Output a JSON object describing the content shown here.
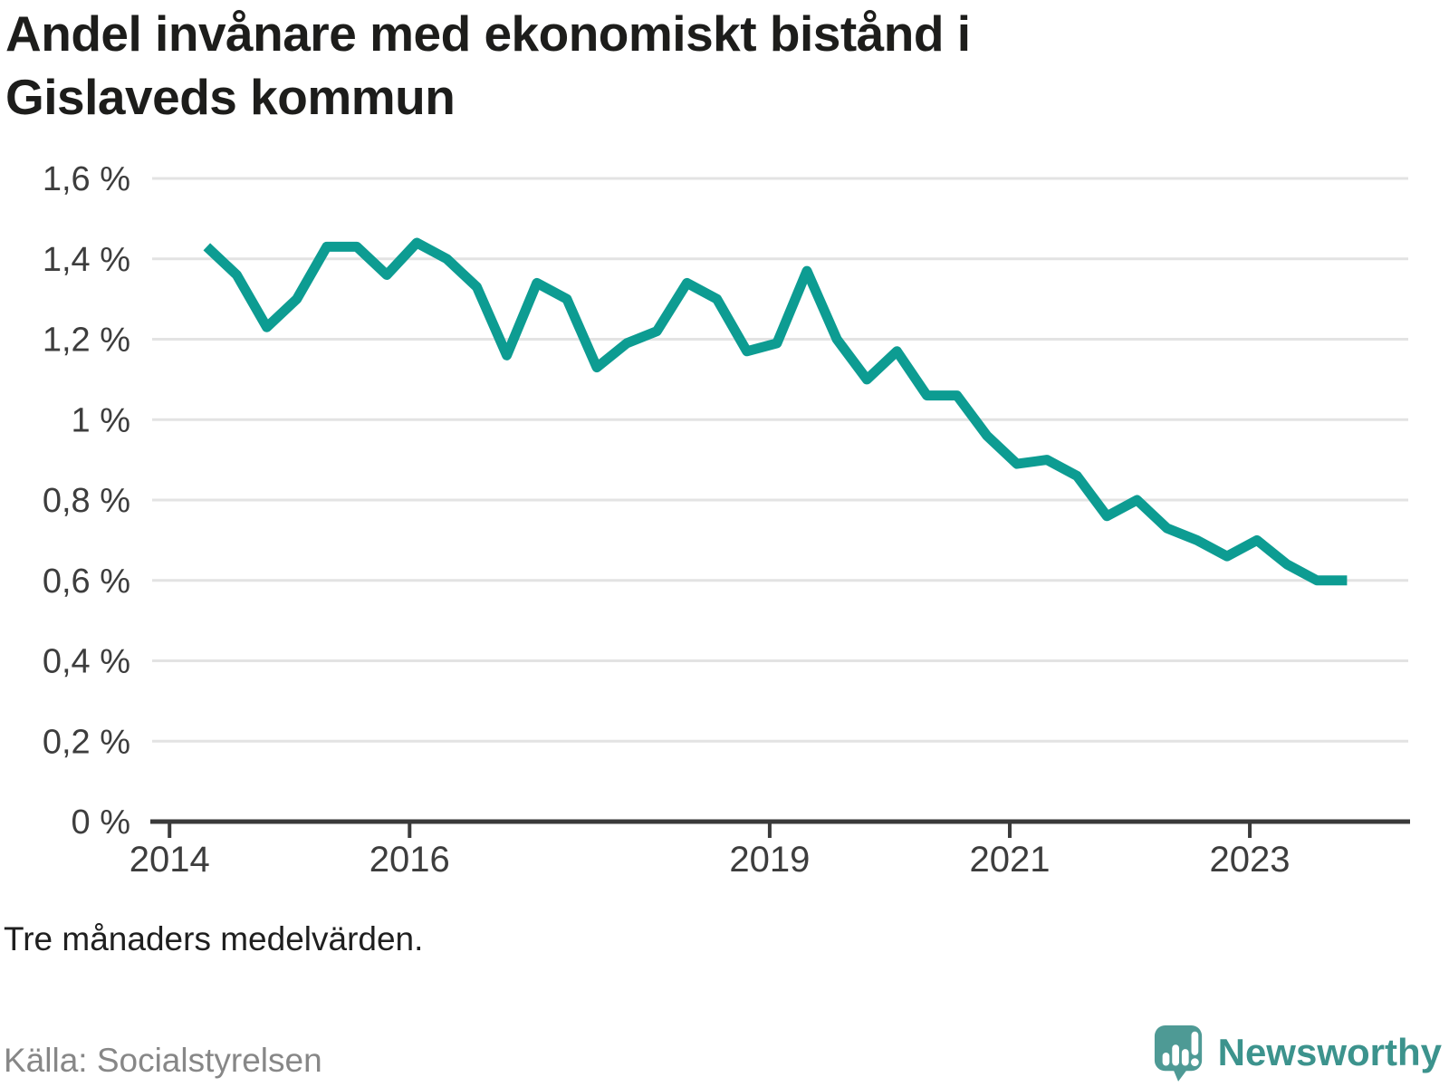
{
  "title": "Andel invånare med ekonomiskt bistånd i Gislaveds kommun",
  "note": "Tre månaders medelvärden.",
  "source": "Källa: Socialstyrelsen",
  "brand": {
    "label": "Newsworthy"
  },
  "colors": {
    "line": "#0d9c92",
    "grid": "#e3e3e3",
    "axis": "#3a3a3a",
    "tick_label": "#3d3d3d",
    "title": "#1d1d1b",
    "note": "#1f1f1f",
    "source": "#878787",
    "brand_icon": "#4e9a95",
    "brand_text": "#3c938d"
  },
  "chart_data": {
    "type": "line",
    "title": "Andel invånare med ekonomiskt bistånd i Gislaveds kommun",
    "series_name": "Andel invånare med ekonomiskt bistånd",
    "unit": "%",
    "xlabel": "",
    "ylabel": "",
    "grid": "horizontal",
    "legend": "none",
    "xlim": [
      2013.855,
      2024.32
    ],
    "ylim": [
      0,
      1.6
    ],
    "x": [
      2014.31,
      2014.56,
      2014.81,
      2015.06,
      2015.31,
      2015.56,
      2015.81,
      2016.06,
      2016.31,
      2016.56,
      2016.81,
      2017.06,
      2017.31,
      2017.56,
      2017.81,
      2018.06,
      2018.31,
      2018.56,
      2018.81,
      2019.06,
      2019.31,
      2019.56,
      2019.81,
      2020.06,
      2020.31,
      2020.56,
      2020.81,
      2021.06,
      2021.31,
      2021.56,
      2021.81,
      2022.06,
      2022.31,
      2022.56,
      2022.81,
      2023.06,
      2023.31,
      2023.56,
      2023.81
    ],
    "values": [
      1.43,
      1.36,
      1.23,
      1.3,
      1.43,
      1.43,
      1.36,
      1.44,
      1.4,
      1.33,
      1.16,
      1.34,
      1.3,
      1.13,
      1.19,
      1.22,
      1.34,
      1.3,
      1.17,
      1.19,
      1.37,
      1.2,
      1.1,
      1.17,
      1.06,
      1.06,
      0.96,
      0.89,
      0.9,
      0.86,
      0.76,
      0.8,
      0.73,
      0.7,
      0.66,
      0.7,
      0.64,
      0.6,
      0.6
    ],
    "y_ticks": [
      {
        "v": 0.0,
        "label": "0 %"
      },
      {
        "v": 0.2,
        "label": "0,2 %"
      },
      {
        "v": 0.4,
        "label": "0,4 %"
      },
      {
        "v": 0.6,
        "label": "0,6 %"
      },
      {
        "v": 0.8,
        "label": "0,8 %"
      },
      {
        "v": 1.0,
        "label": "1 %"
      },
      {
        "v": 1.2,
        "label": "1,2 %"
      },
      {
        "v": 1.4,
        "label": "1,4 %"
      },
      {
        "v": 1.6,
        "label": "1,6 %"
      }
    ],
    "x_ticks": [
      {
        "v": 2014,
        "label": "2014"
      },
      {
        "v": 2016,
        "label": "2016"
      },
      {
        "v": 2019,
        "label": "2019"
      },
      {
        "v": 2021,
        "label": "2021"
      },
      {
        "v": 2023,
        "label": "2023"
      }
    ]
  }
}
